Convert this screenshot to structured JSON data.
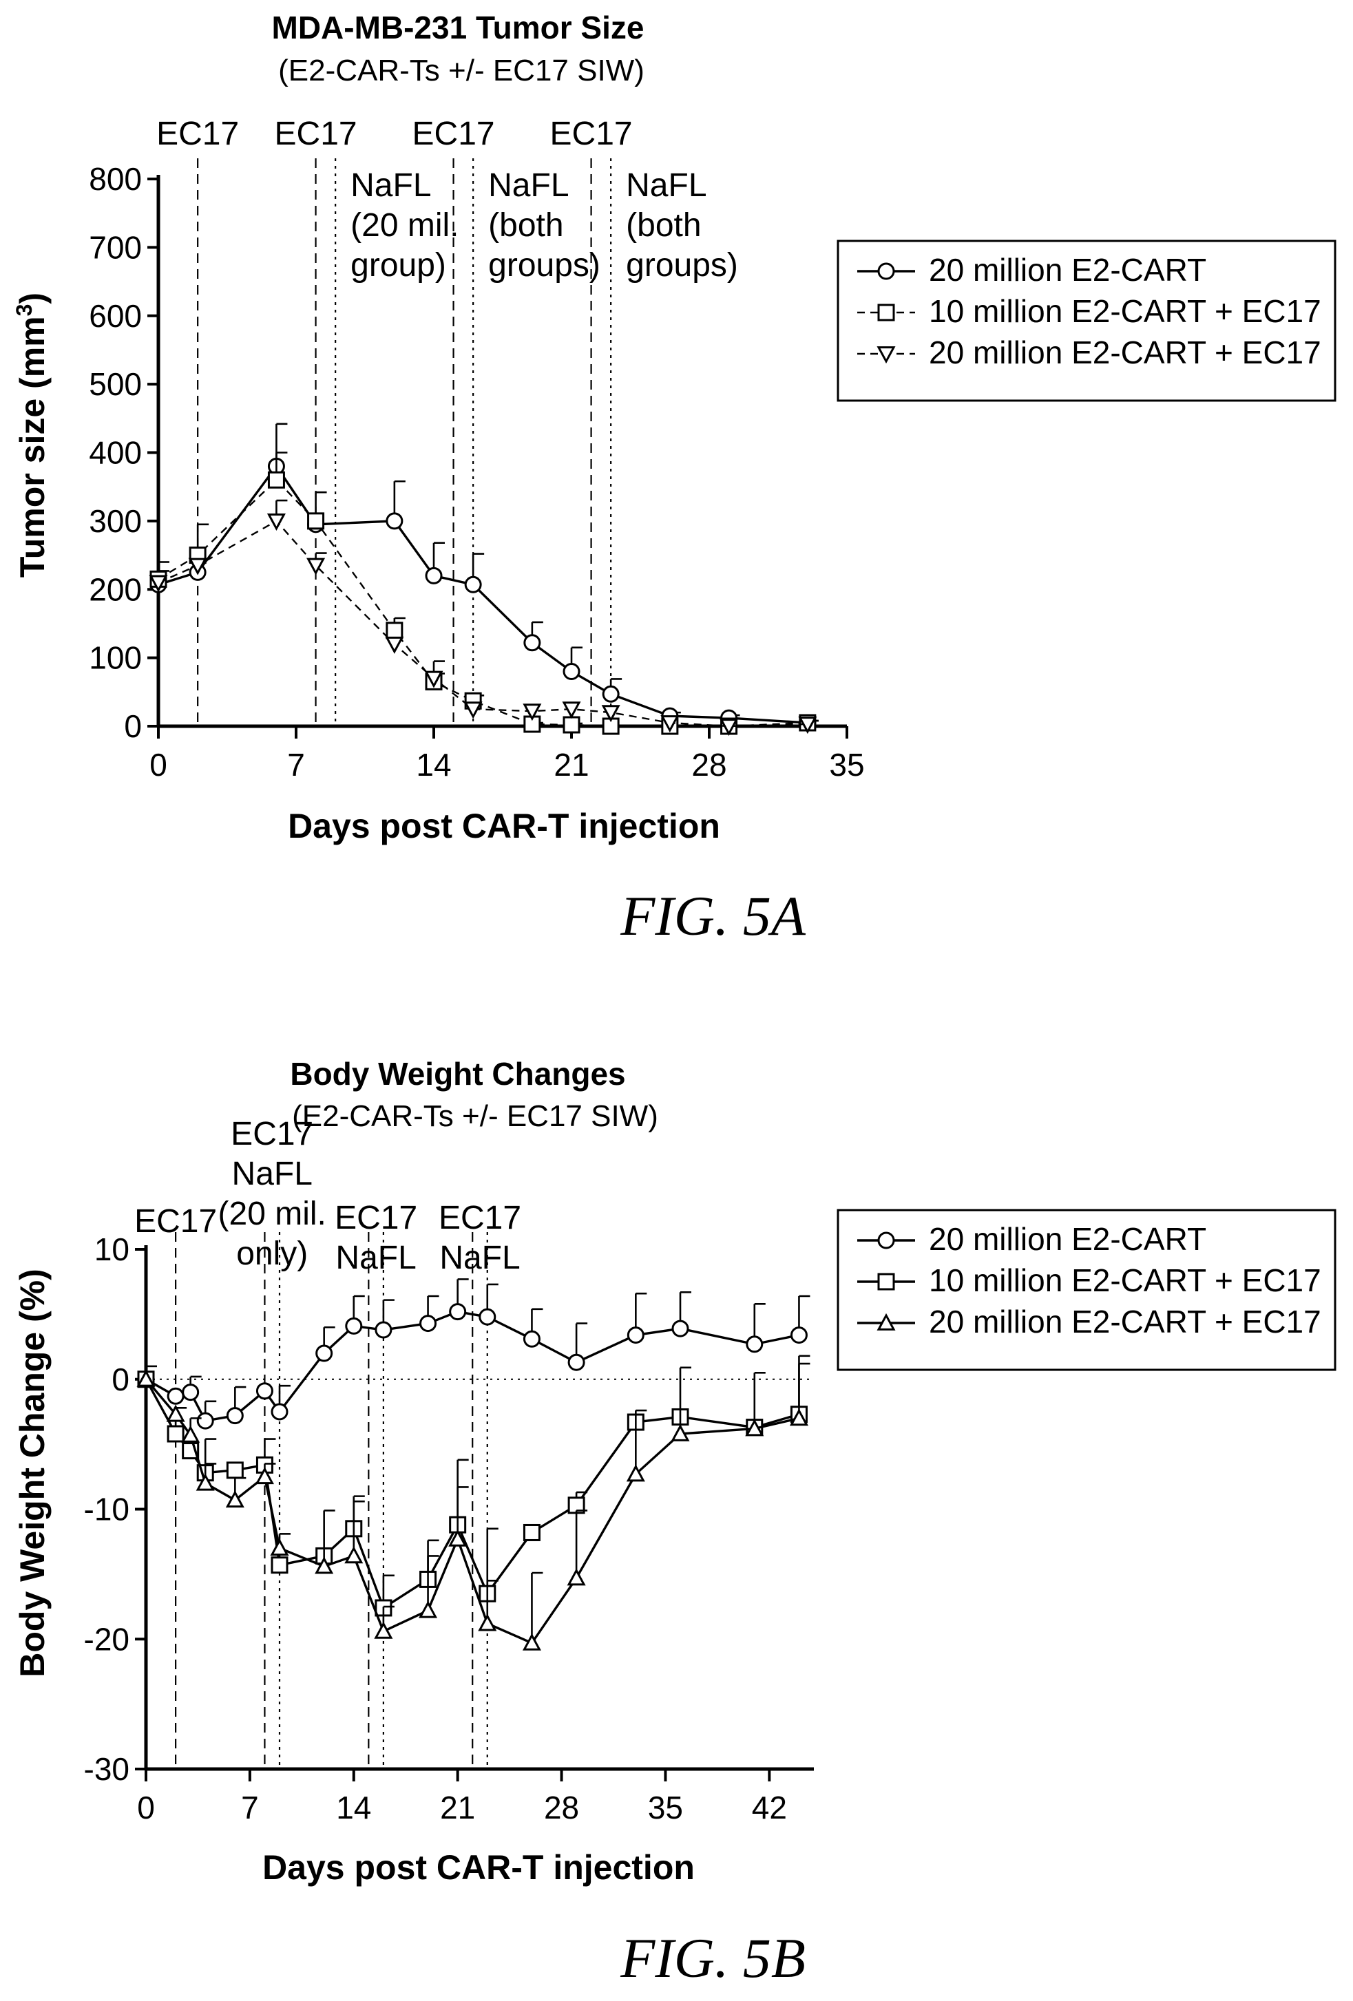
{
  "chart_data": [
    {
      "type": "line",
      "title": "MDA-MB-231 Tumor Size",
      "subtitle": "(E2-CAR-Ts +/- EC17 SIW)",
      "xlabel": "Days post CAR-T injection",
      "ylabel_main": "Tumor size (mm",
      "ylabel_sup": "3",
      "ylabel_end": ")",
      "xlim": [
        0,
        35
      ],
      "ylim": [
        0,
        800
      ],
      "xticks": [
        0,
        7,
        14,
        21,
        28,
        35
      ],
      "yticks": [
        0,
        100,
        200,
        300,
        400,
        500,
        600,
        700,
        800
      ],
      "figure_label": "FIG. 5A",
      "legend_position": "right",
      "event_lines": [
        {
          "x": 2,
          "style": "dashed"
        },
        {
          "x": 8,
          "style": "dashed"
        },
        {
          "x": 9,
          "style": "dotted"
        },
        {
          "x": 15,
          "style": "dashed"
        },
        {
          "x": 16,
          "style": "dotted"
        },
        {
          "x": 22,
          "style": "dashed"
        },
        {
          "x": 23,
          "style": "dotted"
        }
      ],
      "annotations": [
        {
          "x": 2,
          "day": 2,
          "lines": [
            "EC17"
          ],
          "row": "top"
        },
        {
          "x": 8,
          "day": 8,
          "lines": [
            "EC17"
          ],
          "row": "top"
        },
        {
          "x": 15,
          "day": 15,
          "lines": [
            "EC17"
          ],
          "row": "top"
        },
        {
          "x": 22,
          "day": 22,
          "lines": [
            "EC17"
          ],
          "row": "top"
        },
        {
          "x": 9,
          "day": 9,
          "lines": [
            "NaFL",
            "(20 mil.",
            "group)"
          ],
          "row": "mid"
        },
        {
          "x": 16,
          "day": 16,
          "lines": [
            "NaFL",
            "(both",
            "groups)"
          ],
          "row": "mid"
        },
        {
          "x": 23,
          "day": 23,
          "lines": [
            "NaFL",
            "(both",
            "groups)"
          ],
          "row": "mid"
        }
      ],
      "series": [
        {
          "name": "20 million E2-CART",
          "marker": "circle",
          "line": "solid",
          "x": [
            0,
            2,
            6,
            8,
            12,
            14,
            16,
            19,
            21,
            23,
            26,
            29,
            33
          ],
          "y": [
            207,
            225,
            380,
            295,
            300,
            220,
            207,
            122,
            80,
            47,
            15,
            12,
            5
          ],
          "err": [
            20,
            0,
            62,
            0,
            58,
            48,
            45,
            30,
            35,
            22,
            5,
            4,
            3
          ]
        },
        {
          "name": "10 million E2-CART +  EC17",
          "marker": "square",
          "line": "dashed",
          "x": [
            0,
            2,
            6,
            8,
            12,
            14,
            16,
            19,
            21,
            23,
            26,
            29,
            33
          ],
          "y": [
            215,
            250,
            360,
            300,
            140,
            65,
            37,
            3,
            2,
            0,
            0,
            0,
            5
          ],
          "err": [
            25,
            45,
            40,
            42,
            18,
            12,
            8,
            2,
            2,
            0,
            0,
            0,
            3
          ]
        },
        {
          "name": "20 million E2-CART + EC17",
          "marker": "triangle-down",
          "line": "dashed",
          "x": [
            0,
            2,
            6,
            8,
            12,
            14,
            16,
            19,
            21,
            23,
            26,
            29,
            33
          ],
          "y": [
            210,
            235,
            300,
            235,
            120,
            70,
            25,
            22,
            25,
            20,
            5,
            0,
            3
          ],
          "err": [
            0,
            0,
            30,
            18,
            0,
            25,
            0,
            0,
            0,
            0,
            0,
            0,
            0
          ]
        }
      ]
    },
    {
      "type": "line",
      "title": "Body Weight Changes",
      "subtitle": "(E2-CAR-Ts +/- EC17 SIW)",
      "xlabel": "Days post CAR-T injection",
      "ylabel": "Body Weight Change (%)",
      "xlim": [
        0,
        45
      ],
      "ylim": [
        -30,
        10
      ],
      "xticks": [
        0,
        7,
        14,
        21,
        28,
        35,
        42
      ],
      "yticks": [
        -30,
        -20,
        -10,
        0,
        10
      ],
      "figure_label": "FIG. 5B",
      "legend_position": "right",
      "event_lines": [
        {
          "x": 2,
          "style": "dashed"
        },
        {
          "x": 8,
          "style": "dashed"
        },
        {
          "x": 9,
          "style": "dotted"
        },
        {
          "x": 15,
          "style": "dashed"
        },
        {
          "x": 16,
          "style": "dotted"
        },
        {
          "x": 22,
          "style": "dashed"
        },
        {
          "x": 23,
          "style": "dotted"
        }
      ],
      "annotations": [
        {
          "x": 2,
          "day": 2,
          "lines": [
            "EC17"
          ]
        },
        {
          "x": 8.5,
          "day": 8,
          "lines": [
            "EC17",
            "NaFL",
            "(20 mil.",
            "only)"
          ]
        },
        {
          "x": 15.5,
          "day": 15,
          "lines": [
            "EC17",
            "NaFL"
          ]
        },
        {
          "x": 22.5,
          "day": 22,
          "lines": [
            "EC17",
            "NaFL"
          ]
        }
      ],
      "series": [
        {
          "name": "20 million E2-CART",
          "marker": "circle",
          "line": "solid",
          "x": [
            0,
            2,
            3,
            4,
            6,
            8,
            9,
            12,
            14,
            16,
            19,
            21,
            23,
            26,
            29,
            33,
            36,
            41,
            44
          ],
          "y": [
            0,
            -1.3,
            -1.0,
            -3.2,
            -2.8,
            -0.9,
            -2.5,
            2.0,
            4.1,
            3.8,
            4.3,
            5.2,
            4.8,
            3.1,
            1.3,
            3.4,
            3.9,
            2.7,
            3.4
          ],
          "err": [
            1.0,
            0,
            1.2,
            1.5,
            2.2,
            0,
            2.0,
            2.0,
            2.3,
            2.3,
            2.1,
            2.5,
            2.5,
            2.3,
            3.0,
            3.2,
            2.8,
            3.1,
            3.0
          ]
        },
        {
          "name": "10 million E2-CART +  EC17",
          "marker": "square",
          "line": "solid",
          "x": [
            0,
            2,
            3,
            4,
            6,
            8,
            9,
            12,
            14,
            16,
            19,
            21,
            23,
            26,
            29,
            33,
            36,
            41,
            44
          ],
          "y": [
            0,
            -4.2,
            -5.5,
            -7.2,
            -7.0,
            -6.6,
            -14.3,
            -13.6,
            -11.5,
            -17.6,
            -15.4,
            -11.2,
            -16.5,
            -11.8,
            -9.7,
            -3.3,
            -2.9,
            -3.7,
            -2.7
          ],
          "err": [
            0,
            2.0,
            2.5,
            2.6,
            0,
            2.0,
            2.4,
            0,
            2.5,
            2.5,
            3.0,
            5.0,
            5.0,
            0,
            1.0,
            0,
            0,
            4.2,
            4.5
          ]
        },
        {
          "name": "20 million E2-CART + EC17",
          "marker": "triangle-up",
          "line": "solid",
          "x": [
            0,
            2,
            3,
            4,
            6,
            8,
            9,
            12,
            14,
            16,
            19,
            21,
            23,
            26,
            29,
            33,
            36,
            41,
            44
          ],
          "y": [
            0,
            -2.7,
            -4.3,
            -8.0,
            -9.3,
            -7.5,
            -13.0,
            -14.4,
            -13.6,
            -19.4,
            -17.8,
            -12.3,
            -18.8,
            -20.3,
            -15.3,
            -7.3,
            -4.2,
            -3.8,
            -3.0
          ],
          "err": [
            0,
            0,
            0,
            1.5,
            1.7,
            1.0,
            0,
            4.3,
            4.2,
            1.9,
            4.2,
            4.0,
            3.3,
            5.4,
            5.2,
            4.9,
            5.1,
            0,
            4.2
          ]
        }
      ]
    }
  ]
}
